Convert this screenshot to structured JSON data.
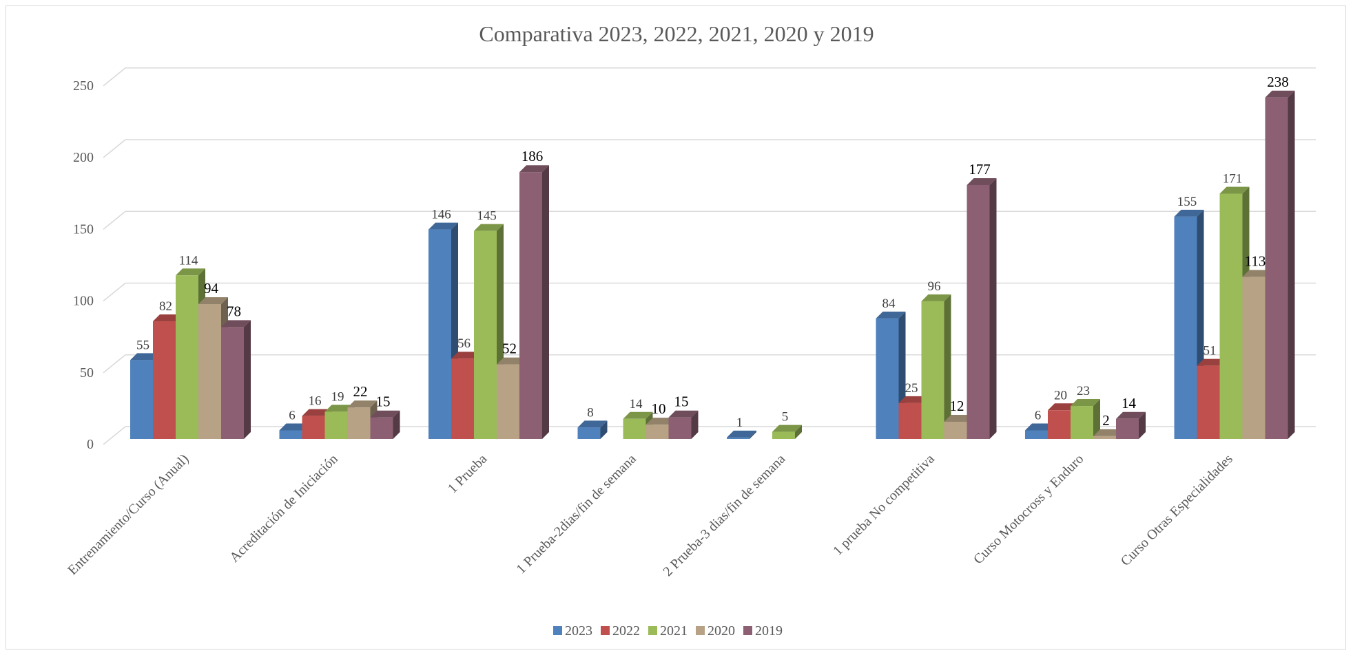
{
  "chart_data": {
    "type": "bar",
    "title": "Comparativa 2023, 2022, 2021, 2020 y 2019",
    "categories": [
      "Entrenamiento/Curso (Anual)",
      "Acreditación de Iniciación",
      "1 Prueba",
      "1 Prueba-2dias/fin de semana",
      "2 Prueba-3 dias/fin de semana",
      "1 prueba No competitiva",
      "Curso Motocross y Enduro",
      "Curso Otras Especialidades"
    ],
    "series": [
      {
        "name": "2023",
        "color": "#4F81BD",
        "values": [
          55,
          6,
          146,
          8,
          1,
          84,
          6,
          155
        ]
      },
      {
        "name": "2022",
        "color": "#C0504D",
        "values": [
          82,
          16,
          56,
          null,
          null,
          25,
          20,
          51
        ]
      },
      {
        "name": "2021",
        "color": "#9BBB59",
        "values": [
          114,
          19,
          145,
          14,
          5,
          96,
          23,
          171
        ]
      },
      {
        "name": "2020",
        "color": "#B7A285",
        "values": [
          94,
          22,
          52,
          10,
          null,
          12,
          2,
          113
        ]
      },
      {
        "name": "2019",
        "color": "#8C6072",
        "values": [
          78,
          15,
          186,
          15,
          null,
          177,
          14,
          238
        ]
      }
    ],
    "ylim": [
      0,
      250
    ],
    "yticks": [
      0,
      50,
      100,
      150,
      200,
      250
    ],
    "grid": true,
    "legend": "bottom",
    "three_d": true
  }
}
